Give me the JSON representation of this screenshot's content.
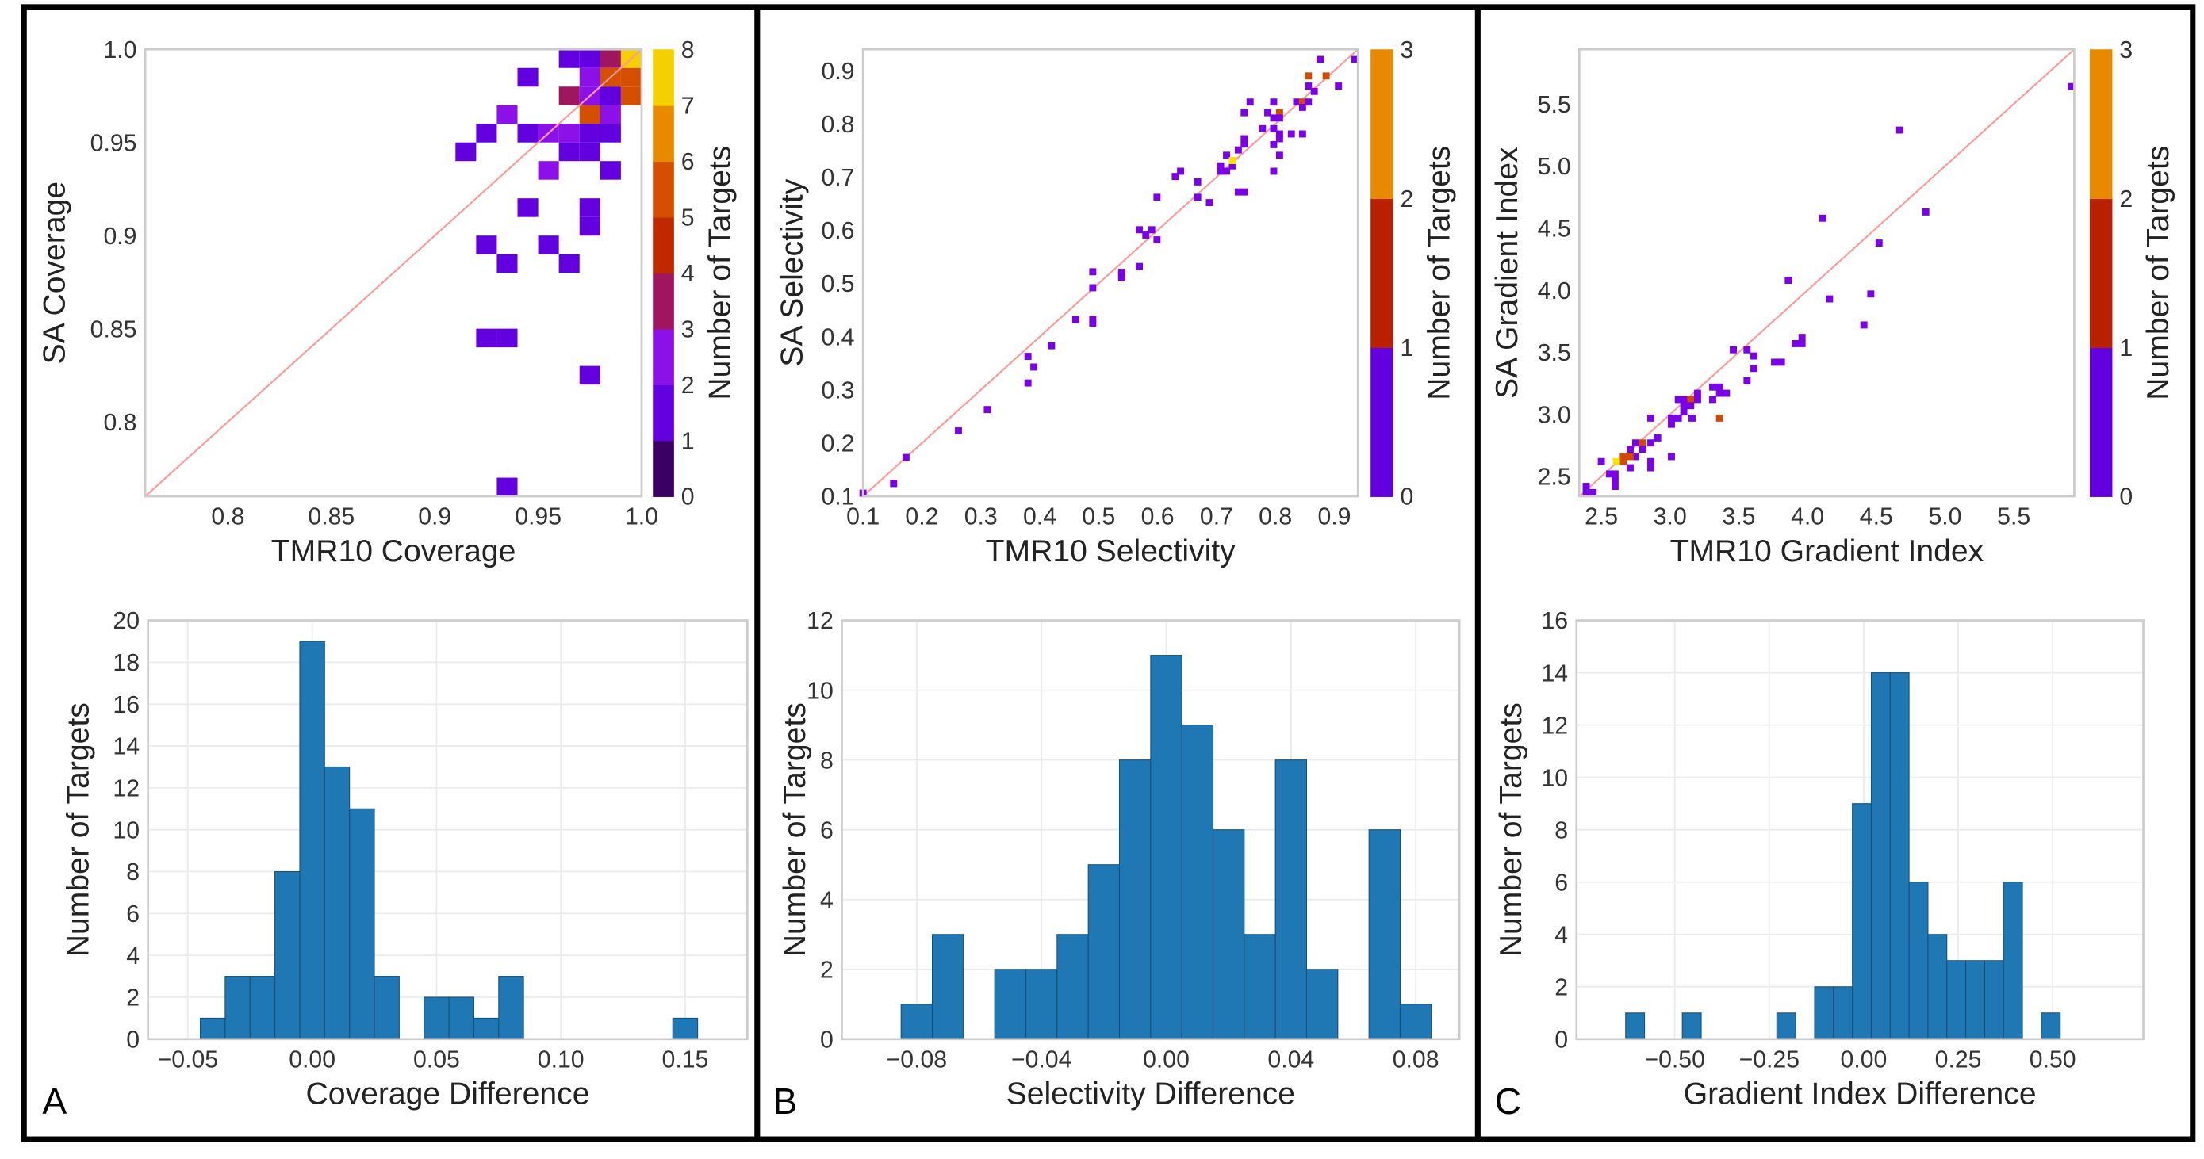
{
  "panels": [
    {
      "letter": "A"
    },
    {
      "letter": "B"
    },
    {
      "letter": "C"
    }
  ],
  "chart_data": [
    {
      "type": "heatmap",
      "xlabel": "TMR10 Coverage",
      "ylabel": "SA Coverage",
      "xlim": [
        0.76,
        1.0
      ],
      "ylim": [
        0.76,
        1.0
      ],
      "cell_size": 0.01,
      "xticks": [
        "0.8",
        "0.85",
        "0.9",
        "0.95",
        "1.0"
      ],
      "yticks": [
        "0.8",
        "0.85",
        "0.9",
        "0.95",
        "1.0"
      ],
      "reference_line": "y = x",
      "reference_color": "#ff9999",
      "grid": false,
      "colorbar": {
        "label": "Number of Targets",
        "range": [
          0,
          8
        ],
        "ticks": [
          "0",
          "1",
          "2",
          "3",
          "4",
          "5",
          "6",
          "7",
          "8"
        ],
        "colors": [
          "#3a0063",
          "#6200e0",
          "#8c10e8",
          "#a0165e",
          "#c02800",
          "#d45000",
          "#e88a00",
          "#f5d000"
        ]
      },
      "cells": [
        [
          0.965,
          0.995,
          1
        ],
        [
          0.975,
          0.995,
          1
        ],
        [
          0.985,
          0.995,
          3
        ],
        [
          0.995,
          0.995,
          8
        ],
        [
          0.945,
          0.985,
          1
        ],
        [
          0.975,
          0.985,
          2
        ],
        [
          0.985,
          0.985,
          5
        ],
        [
          0.995,
          0.985,
          5
        ],
        [
          0.965,
          0.975,
          3
        ],
        [
          0.975,
          0.975,
          2
        ],
        [
          0.985,
          0.975,
          1
        ],
        [
          0.995,
          0.975,
          5
        ],
        [
          0.935,
          0.965,
          2
        ],
        [
          0.975,
          0.965,
          5
        ],
        [
          0.985,
          0.965,
          2
        ],
        [
          0.925,
          0.955,
          1
        ],
        [
          0.945,
          0.955,
          1
        ],
        [
          0.955,
          0.955,
          2
        ],
        [
          0.965,
          0.955,
          2
        ],
        [
          0.975,
          0.955,
          1
        ],
        [
          0.985,
          0.955,
          1
        ],
        [
          0.915,
          0.945,
          1
        ],
        [
          0.965,
          0.945,
          1
        ],
        [
          0.975,
          0.945,
          1
        ],
        [
          0.955,
          0.935,
          2
        ],
        [
          0.985,
          0.935,
          1
        ],
        [
          0.945,
          0.915,
          1
        ],
        [
          0.975,
          0.915,
          1
        ],
        [
          0.975,
          0.905,
          1
        ],
        [
          0.925,
          0.895,
          1
        ],
        [
          0.955,
          0.895,
          1
        ],
        [
          0.935,
          0.885,
          1
        ],
        [
          0.965,
          0.885,
          1
        ],
        [
          0.925,
          0.845,
          1
        ],
        [
          0.935,
          0.845,
          1
        ],
        [
          0.975,
          0.825,
          1
        ],
        [
          0.935,
          0.765,
          1
        ]
      ]
    },
    {
      "type": "bar",
      "xlabel": "Coverage Difference",
      "ylabel": "Number of Targets",
      "xlim": [
        -0.066,
        0.175
      ],
      "ylim": [
        0,
        20
      ],
      "xticks": [
        "−0.05",
        "0.00",
        "0.05",
        "0.10",
        "0.15"
      ],
      "yticks": [
        "0",
        "2",
        "4",
        "6",
        "8",
        "10",
        "12",
        "14",
        "16",
        "18",
        "20"
      ],
      "grid": true,
      "bar_color": "#1f77b4",
      "bin_start": -0.045,
      "bin_width": 0.01,
      "counts": [
        1,
        3,
        3,
        8,
        19,
        13,
        11,
        3,
        0,
        2,
        2,
        1,
        3,
        0,
        0,
        0,
        0,
        0,
        0,
        1
      ]
    },
    {
      "type": "scatter",
      "xlabel": "TMR10 Selectivity",
      "ylabel": "SA Selectivity",
      "xlim": [
        0.1,
        0.94
      ],
      "ylim": [
        0.1,
        0.94
      ],
      "xticks": [
        "0.1",
        "0.2",
        "0.3",
        "0.4",
        "0.5",
        "0.6",
        "0.7",
        "0.8",
        "0.9"
      ],
      "yticks": [
        "0.1",
        "0.2",
        "0.3",
        "0.4",
        "0.5",
        "0.6",
        "0.7",
        "0.8",
        "0.9"
      ],
      "reference_line": "y = x",
      "reference_color": "#ff9999",
      "grid": false,
      "colorbar": {
        "label": "Number of Targets",
        "range": [
          0,
          3
        ],
        "ticks": [
          "0",
          "1",
          "2",
          "3"
        ],
        "colors": [
          "#6200e0",
          "#b82000",
          "#e88a00"
        ]
      },
      "point_colors": [
        "#7a00e6",
        "#d04a00",
        "#ffe000"
      ],
      "points": [
        [
          0.1,
          0.106,
          1
        ],
        [
          0.152,
          0.124,
          1
        ],
        [
          0.173,
          0.173,
          1
        ],
        [
          0.262,
          0.223,
          1
        ],
        [
          0.311,
          0.263,
          1
        ],
        [
          0.38,
          0.363,
          1
        ],
        [
          0.39,
          0.343,
          1
        ],
        [
          0.38,
          0.313,
          1
        ],
        [
          0.42,
          0.383,
          1
        ],
        [
          0.461,
          0.432,
          1
        ],
        [
          0.49,
          0.432,
          1
        ],
        [
          0.49,
          0.425,
          1
        ],
        [
          0.49,
          0.492,
          1
        ],
        [
          0.49,
          0.522,
          1
        ],
        [
          0.539,
          0.521,
          1
        ],
        [
          0.539,
          0.511,
          1
        ],
        [
          0.569,
          0.532,
          1
        ],
        [
          0.569,
          0.601,
          1
        ],
        [
          0.58,
          0.591,
          1
        ],
        [
          0.59,
          0.601,
          1
        ],
        [
          0.599,
          0.582,
          1
        ],
        [
          0.599,
          0.662,
          1
        ],
        [
          0.63,
          0.701,
          1
        ],
        [
          0.639,
          0.711,
          1
        ],
        [
          0.668,
          0.691,
          1
        ],
        [
          0.668,
          0.662,
          1
        ],
        [
          0.688,
          0.652,
          1
        ],
        [
          0.707,
          0.721,
          1
        ],
        [
          0.707,
          0.711,
          1
        ],
        [
          0.717,
          0.711,
          1
        ],
        [
          0.717,
          0.741,
          1
        ],
        [
          0.727,
          0.721,
          1
        ],
        [
          0.727,
          0.731,
          3
        ],
        [
          0.737,
          0.751,
          1
        ],
        [
          0.737,
          0.672,
          1
        ],
        [
          0.747,
          0.672,
          1
        ],
        [
          0.747,
          0.772,
          1
        ],
        [
          0.747,
          0.762,
          1
        ],
        [
          0.747,
          0.821,
          1
        ],
        [
          0.757,
          0.841,
          1
        ],
        [
          0.778,
          0.791,
          1
        ],
        [
          0.787,
          0.821,
          1
        ],
        [
          0.797,
          0.841,
          1
        ],
        [
          0.797,
          0.811,
          1
        ],
        [
          0.797,
          0.791,
          1
        ],
        [
          0.797,
          0.761,
          1
        ],
        [
          0.797,
          0.711,
          1
        ],
        [
          0.807,
          0.821,
          2
        ],
        [
          0.807,
          0.811,
          1
        ],
        [
          0.807,
          0.781,
          1
        ],
        [
          0.807,
          0.772,
          1
        ],
        [
          0.807,
          0.741,
          1
        ],
        [
          0.827,
          0.781,
          1
        ],
        [
          0.846,
          0.781,
          1
        ],
        [
          0.836,
          0.841,
          1
        ],
        [
          0.846,
          0.841,
          2
        ],
        [
          0.846,
          0.831,
          1
        ],
        [
          0.856,
          0.841,
          1
        ],
        [
          0.856,
          0.871,
          1
        ],
        [
          0.866,
          0.861,
          1
        ],
        [
          0.856,
          0.89,
          2
        ],
        [
          0.886,
          0.89,
          2
        ],
        [
          0.876,
          0.921,
          1
        ],
        [
          0.907,
          0.871,
          1
        ],
        [
          0.935,
          0.921,
          1
        ]
      ]
    },
    {
      "type": "bar",
      "xlabel": "Selectivity Difference",
      "ylabel": "Number of Targets",
      "xlim": [
        -0.104,
        0.094
      ],
      "ylim": [
        0,
        12
      ],
      "xticks": [
        "−0.08",
        "−0.04",
        "0.00",
        "0.04",
        "0.08"
      ],
      "yticks": [
        "0",
        "2",
        "4",
        "6",
        "8",
        "10",
        "12"
      ],
      "grid": true,
      "bar_color": "#1f77b4",
      "bin_start": -0.085,
      "bin_width": 0.01,
      "counts": [
        1,
        3,
        0,
        2,
        2,
        3,
        5,
        8,
        11,
        9,
        6,
        3,
        8,
        2,
        0,
        6,
        1
      ]
    },
    {
      "type": "scatter",
      "xlabel": "TMR10 Gradient Index",
      "ylabel": "SA Gradient Index",
      "xlim": [
        2.34,
        5.94
      ],
      "ylim": [
        2.34,
        5.94
      ],
      "xticks": [
        "2.5",
        "3.0",
        "3.5",
        "4.0",
        "4.5",
        "5.0",
        "5.5"
      ],
      "yticks": [
        "2.5",
        "3.0",
        "3.5",
        "4.0",
        "4.5",
        "5.0",
        "5.5"
      ],
      "reference_line": "y = x",
      "reference_color": "#ff9999",
      "grid": false,
      "colorbar": {
        "label": "Number of Targets",
        "range": [
          0,
          3
        ],
        "ticks": [
          "0",
          "1",
          "2",
          "3"
        ],
        "colors": [
          "#6200e0",
          "#b82000",
          "#e88a00"
        ]
      },
      "point_colors": [
        "#7a00e6",
        "#d04a00",
        "#ffe000"
      ],
      "points": [
        [
          5.92,
          5.64,
          1
        ],
        [
          4.67,
          5.29,
          1
        ],
        [
          4.11,
          4.58,
          1
        ],
        [
          4.86,
          4.63,
          1
        ],
        [
          4.52,
          4.38,
          1
        ],
        [
          3.86,
          4.08,
          1
        ],
        [
          4.16,
          3.93,
          1
        ],
        [
          4.46,
          3.97,
          1
        ],
        [
          4.41,
          3.72,
          1
        ],
        [
          3.91,
          3.57,
          1
        ],
        [
          3.96,
          3.57,
          1
        ],
        [
          3.96,
          3.62,
          1
        ],
        [
          3.46,
          3.52,
          1
        ],
        [
          3.56,
          3.52,
          1
        ],
        [
          3.61,
          3.47,
          1
        ],
        [
          3.61,
          3.37,
          1
        ],
        [
          3.56,
          3.27,
          1
        ],
        [
          3.76,
          3.42,
          1
        ],
        [
          3.81,
          3.42,
          1
        ],
        [
          3.31,
          3.22,
          1
        ],
        [
          3.36,
          3.22,
          1
        ],
        [
          3.36,
          3.17,
          1
        ],
        [
          3.41,
          3.17,
          1
        ],
        [
          3.31,
          3.12,
          1
        ],
        [
          3.36,
          2.97,
          2
        ],
        [
          3.06,
          3.12,
          1
        ],
        [
          3.1,
          3.12,
          1
        ],
        [
          3.15,
          3.12,
          2
        ],
        [
          3.2,
          3.17,
          1
        ],
        [
          3.2,
          3.12,
          1
        ],
        [
          3.1,
          3.07,
          1
        ],
        [
          3.15,
          3.07,
          1
        ],
        [
          3.1,
          3.02,
          1
        ],
        [
          2.86,
          2.97,
          1
        ],
        [
          3.01,
          2.97,
          1
        ],
        [
          3.06,
          2.97,
          1
        ],
        [
          3.01,
          2.92,
          1
        ],
        [
          3.16,
          2.97,
          1
        ],
        [
          2.91,
          2.81,
          1
        ],
        [
          2.75,
          2.77,
          1
        ],
        [
          2.8,
          2.77,
          2
        ],
        [
          2.86,
          2.77,
          1
        ],
        [
          2.8,
          2.72,
          1
        ],
        [
          2.71,
          2.72,
          1
        ],
        [
          2.75,
          2.66,
          1
        ],
        [
          3.01,
          2.66,
          1
        ],
        [
          2.66,
          2.66,
          2
        ],
        [
          2.71,
          2.66,
          2
        ],
        [
          2.66,
          2.62,
          2
        ],
        [
          2.61,
          2.62,
          3
        ],
        [
          2.5,
          2.62,
          1
        ],
        [
          2.86,
          2.62,
          1
        ],
        [
          2.86,
          2.57,
          1
        ],
        [
          2.71,
          2.57,
          1
        ],
        [
          2.56,
          2.52,
          1
        ],
        [
          2.6,
          2.52,
          1
        ],
        [
          2.6,
          2.47,
          1
        ],
        [
          2.6,
          2.42,
          1
        ],
        [
          2.39,
          2.42,
          1
        ],
        [
          2.39,
          2.37,
          1
        ],
        [
          2.44,
          2.37,
          1
        ]
      ]
    },
    {
      "type": "bar",
      "xlabel": "Gradient Index Difference",
      "ylabel": "Number of Targets",
      "xlim": [
        -0.76,
        0.74
      ],
      "ylim": [
        0,
        16
      ],
      "xticks": [
        "−0.50",
        "−0.25",
        "0.00",
        "0.25",
        "0.50"
      ],
      "yticks": [
        "0",
        "2",
        "4",
        "6",
        "8",
        "10",
        "12",
        "14",
        "16"
      ],
      "grid": true,
      "bar_color": "#1f77b4",
      "bin_start": -0.63,
      "bin_width": 0.05,
      "counts": [
        1,
        0,
        0,
        1,
        0,
        0,
        0,
        0,
        1,
        0,
        2,
        2,
        9,
        14,
        14,
        6,
        4,
        3,
        3,
        3,
        6,
        0,
        1
      ]
    }
  ]
}
